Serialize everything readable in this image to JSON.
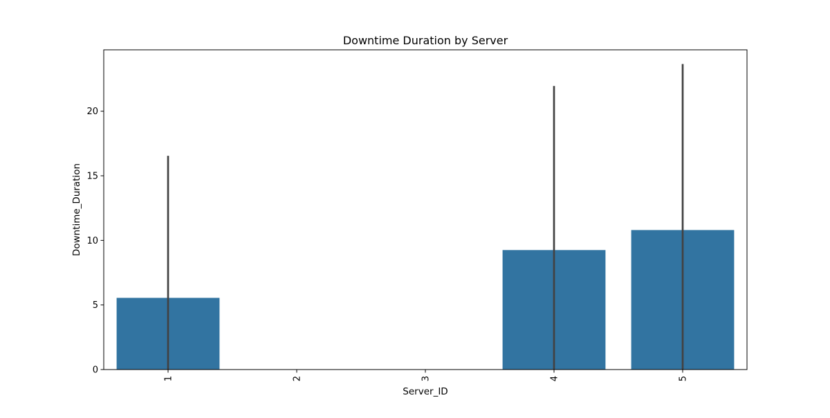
{
  "chart_data": {
    "type": "bar",
    "title": "Downtime Duration by Server",
    "xlabel": "Server_ID",
    "ylabel": "Downtime_Duration",
    "categories": [
      "1",
      "2",
      "3",
      "4",
      "5"
    ],
    "values": [
      5.55,
      0,
      0,
      9.25,
      10.8
    ],
    "error_bars": [
      {
        "low": 0,
        "high": 16.55
      },
      null,
      null,
      {
        "low": 0,
        "high": 21.95
      },
      {
        "low": 0,
        "high": 23.65
      }
    ],
    "ylim": [
      0,
      24.75
    ],
    "yticks": [
      0,
      5,
      10,
      15,
      20
    ],
    "bar_color": "#3274a1",
    "errorbar_color": "#424242",
    "grid": false,
    "xtick_rotation": 90
  }
}
